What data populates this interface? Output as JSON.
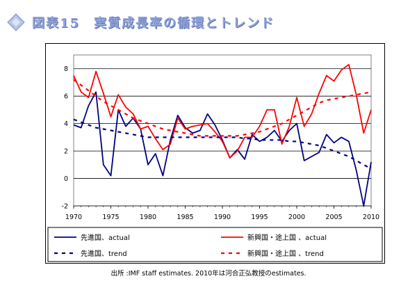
{
  "header": {
    "title": "図表15　実質成長率の循環とトレンド",
    "icon": "diamond-icon"
  },
  "source_note": "出所 :IMF staff estimates. 2010年は河合正弘教授のestimates.",
  "colors": {
    "advanced": "#000080",
    "emerging": "#ff0000",
    "title": "#8fa3d8"
  },
  "chart_data": {
    "type": "line",
    "title": "",
    "xlabel": "",
    "ylabel": "",
    "xlim": [
      1970,
      2010
    ],
    "ylim": [
      -2,
      9
    ],
    "x_ticks": [
      1970,
      1975,
      1980,
      1985,
      1990,
      1995,
      2000,
      2005,
      2010
    ],
    "y_ticks": [
      -2,
      0,
      2,
      4,
      6,
      8
    ],
    "grid": "horizontal",
    "legend_position": "bottom",
    "series": [
      {
        "name": "先進国、actual",
        "style": "solid",
        "color": "#000080",
        "x": [
          1970,
          1971,
          1972,
          1973,
          1974,
          1975,
          1976,
          1977,
          1978,
          1979,
          1980,
          1981,
          1982,
          1983,
          1984,
          1985,
          1986,
          1987,
          1988,
          1989,
          1990,
          1991,
          1992,
          1993,
          1994,
          1995,
          1996,
          1997,
          1998,
          1999,
          2000,
          2001,
          2002,
          2003,
          2004,
          2005,
          2006,
          2007,
          2008,
          2009,
          2010
        ],
        "values": [
          3.9,
          3.7,
          5.3,
          6.3,
          1.0,
          0.2,
          5.0,
          3.8,
          4.4,
          3.6,
          1.0,
          1.8,
          0.2,
          2.8,
          4.6,
          3.7,
          3.3,
          3.5,
          4.7,
          3.9,
          2.8,
          1.5,
          2.1,
          1.4,
          3.2,
          2.7,
          3.0,
          3.5,
          2.7,
          3.5,
          4.0,
          1.3,
          1.6,
          1.9,
          3.2,
          2.6,
          3.0,
          2.7,
          0.6,
          -2.0,
          1.2
        ]
      },
      {
        "name": "新興国・途上国 、actual",
        "style": "solid",
        "color": "#ff0000",
        "x": [
          1970,
          1971,
          1972,
          1973,
          1974,
          1975,
          1976,
          1977,
          1978,
          1979,
          1980,
          1981,
          1982,
          1983,
          1984,
          1985,
          1986,
          1987,
          1988,
          1989,
          1990,
          1991,
          1992,
          1993,
          1994,
          1995,
          1996,
          1997,
          1998,
          1999,
          2000,
          2001,
          2002,
          2003,
          2004,
          2005,
          2006,
          2007,
          2008,
          2009,
          2010
        ],
        "values": [
          7.5,
          6.3,
          5.9,
          7.8,
          6.2,
          4.5,
          6.1,
          5.2,
          4.7,
          3.6,
          3.8,
          2.9,
          2.1,
          2.5,
          4.4,
          3.6,
          3.8,
          3.9,
          4.0,
          3.4,
          2.7,
          1.5,
          2.0,
          3.0,
          3.0,
          3.8,
          5.0,
          5.0,
          2.5,
          3.8,
          5.9,
          3.8,
          4.7,
          6.2,
          7.5,
          7.1,
          7.9,
          8.3,
          6.1,
          3.3,
          5.0
        ]
      },
      {
        "name": "先進国、trend",
        "style": "dashed",
        "color": "#000080",
        "x": [
          1970,
          1971,
          1972,
          1973,
          1974,
          1975,
          1976,
          1977,
          1978,
          1979,
          1980,
          1981,
          1982,
          1983,
          1984,
          1985,
          1986,
          1987,
          1988,
          1989,
          1990,
          1991,
          1992,
          1993,
          1994,
          1995,
          1996,
          1997,
          1998,
          1999,
          2000,
          2001,
          2002,
          2003,
          2004,
          2005,
          2006,
          2007,
          2008,
          2009,
          2010
        ],
        "values": [
          4.3,
          4.1,
          3.9,
          3.7,
          3.6,
          3.5,
          3.4,
          3.3,
          3.2,
          3.1,
          3.0,
          3.0,
          3.0,
          3.0,
          3.0,
          3.0,
          3.0,
          3.0,
          3.0,
          3.0,
          3.0,
          3.0,
          3.0,
          2.9,
          2.9,
          2.8,
          2.8,
          2.8,
          2.8,
          2.7,
          2.7,
          2.6,
          2.5,
          2.4,
          2.2,
          2.0,
          1.8,
          1.6,
          1.3,
          1.0,
          0.7
        ]
      },
      {
        "name": "新興国・途上国 、trend",
        "style": "dashed",
        "color": "#ff0000",
        "x": [
          1970,
          1971,
          1972,
          1973,
          1974,
          1975,
          1976,
          1977,
          1978,
          1979,
          1980,
          1981,
          1982,
          1983,
          1984,
          1985,
          1986,
          1987,
          1988,
          1989,
          1990,
          1991,
          1992,
          1993,
          1994,
          1995,
          1996,
          1997,
          1998,
          1999,
          2000,
          2001,
          2002,
          2003,
          2004,
          2005,
          2006,
          2007,
          2008,
          2009,
          2010
        ],
        "values": [
          7.2,
          6.8,
          6.4,
          6.0,
          5.6,
          5.3,
          5.0,
          4.7,
          4.4,
          4.2,
          4.0,
          3.8,
          3.6,
          3.5,
          3.4,
          3.3,
          3.2,
          3.1,
          3.1,
          3.1,
          3.1,
          3.1,
          3.1,
          3.2,
          3.3,
          3.4,
          3.6,
          3.8,
          4.0,
          4.3,
          4.6,
          4.9,
          5.2,
          5.5,
          5.7,
          5.8,
          5.9,
          6.0,
          6.1,
          6.2,
          6.3
        ]
      }
    ]
  }
}
